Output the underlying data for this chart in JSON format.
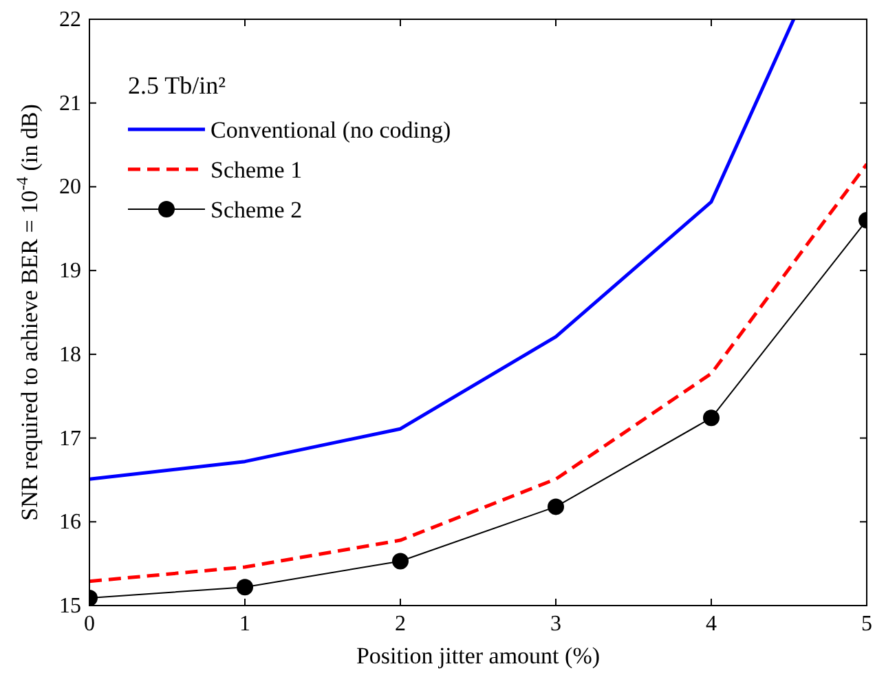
{
  "chart_data": {
    "type": "line",
    "xlabel": "Position jitter amount (%)",
    "ylabel": "SNR required to achieve BER = 10$^{-4}$ (in dB)",
    "legend_title": "2.5 Tb/in²",
    "x": [
      0,
      1,
      2,
      3,
      4,
      5
    ],
    "xlim": [
      0,
      5
    ],
    "ylim": [
      15,
      22
    ],
    "xticks": [
      0,
      1,
      2,
      3,
      4,
      5
    ],
    "yticks": [
      15,
      16,
      17,
      18,
      19,
      20,
      21,
      22
    ],
    "grid": false,
    "legend": "top left",
    "series": [
      {
        "name": "Conventional (no coding)",
        "color": "#0000ff",
        "x": [
          0,
          1,
          2,
          3,
          4,
          4.53
        ],
        "values": [
          16.51,
          16.72,
          17.11,
          18.21,
          19.82,
          22
        ],
        "line_style": "solid",
        "marker": "none"
      },
      {
        "name": "Scheme 1",
        "color": "#ff0000",
        "values": [
          15.29,
          15.46,
          15.78,
          16.51,
          17.77,
          20.27
        ],
        "line_style": "dashed",
        "marker": "none"
      },
      {
        "name": "Scheme 2",
        "color": "#000000",
        "values": [
          15.09,
          15.22,
          15.53,
          16.18,
          17.24,
          19.6
        ],
        "line_style": "solid",
        "marker": "circle"
      }
    ]
  }
}
